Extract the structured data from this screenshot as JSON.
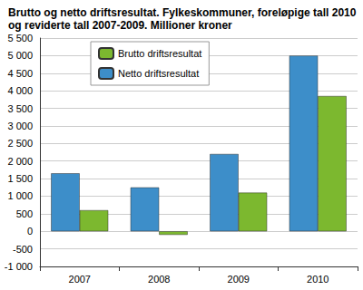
{
  "chart_data": {
    "type": "bar",
    "title": "Brutto og netto driftsresultat. Fylkeskommuner, foreløpige tall 2010\nog reviderte tall 2007-2009. Millioner kroner",
    "categories": [
      "2007",
      "2008",
      "2009",
      "2010"
    ],
    "series": [
      {
        "name": "Netto driftsresultat",
        "color": "#3d8ec9",
        "values": [
          1650,
          1250,
          2200,
          5000
        ]
      },
      {
        "name": "Brutto driftsresultat",
        "color": "#7cb82f",
        "values": [
          600,
          -100,
          1100,
          3850
        ]
      }
    ],
    "ylim": [
      -1000,
      5500
    ],
    "yticks": [
      {
        "value": -1000,
        "label": "-1 000"
      },
      -500,
      0,
      500,
      {
        "value": 1000,
        "label": "1 000"
      },
      {
        "value": 1500,
        "label": "1 500"
      },
      {
        "value": 2000,
        "label": "2 000"
      },
      {
        "value": 2500,
        "label": "2 500"
      },
      {
        "value": 3000,
        "label": "3 000"
      },
      {
        "value": 3500,
        "label": "3 500"
      },
      {
        "value": 4000,
        "label": "4 000"
      },
      {
        "value": 4500,
        "label": "4 500"
      },
      {
        "value": 5000,
        "label": "5 000"
      },
      {
        "value": 5500,
        "label": "5 500"
      }
    ],
    "grid": true,
    "legend": "upper left"
  }
}
